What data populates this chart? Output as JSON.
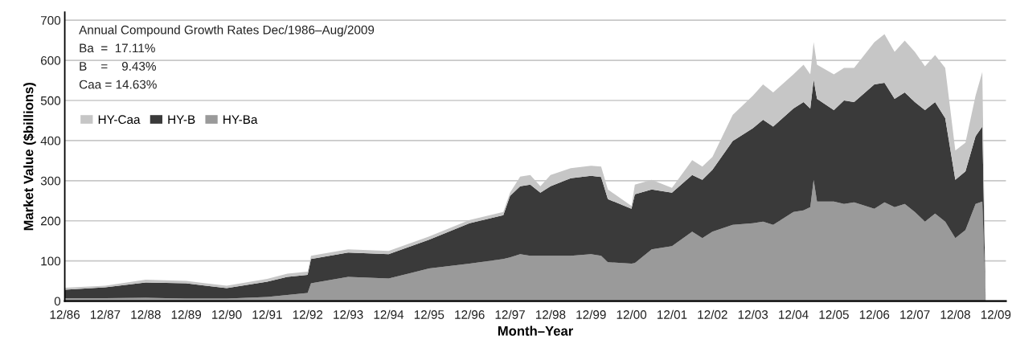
{
  "chart_data": {
    "type": "area",
    "stacked": true,
    "xlabel": "Month–Year",
    "ylabel": "Market Value ($billions)",
    "annotations": [
      "Annual Compound Growth Rates Dec/1986–Aug/2009",
      "Ba  =  17.11%",
      "B    =    9.43%",
      "Caa = 14.63%"
    ],
    "x": [
      "1986-12",
      "1987-12",
      "1988-12",
      "1989-12",
      "1990-12",
      "1991-12",
      "1992-06",
      "1992-12",
      "1993-01",
      "1993-12",
      "1994-12",
      "1995-12",
      "1996-12",
      "1997-10",
      "1997-12",
      "1998-03",
      "1998-06",
      "1998-09",
      "1998-12",
      "1999-06",
      "1999-12",
      "2000-03",
      "2000-05",
      "2000-12",
      "2001-01",
      "2001-06",
      "2001-12",
      "2002-06",
      "2002-09",
      "2002-12",
      "2003-06",
      "2003-12",
      "2004-03",
      "2004-06",
      "2004-12",
      "2005-03",
      "2005-05",
      "2005-06",
      "2005-07",
      "2005-12",
      "2006-03",
      "2006-06",
      "2006-12",
      "2007-03",
      "2007-06",
      "2007-09",
      "2007-12",
      "2008-03",
      "2008-06",
      "2008-09",
      "2008-12",
      "2009-03",
      "2009-06",
      "2009-08",
      "2009-09"
    ],
    "series": [
      {
        "name": "HY-Ba",
        "color": "#9a9a9a",
        "values": [
          7,
          7,
          8,
          6,
          6,
          10,
          15,
          20,
          44,
          60,
          56,
          81,
          93,
          105,
          109,
          117,
          113,
          113,
          113,
          113,
          117,
          113,
          97,
          93,
          95,
          129,
          137,
          173,
          157,
          173,
          190,
          194,
          198,
          190,
          222,
          226,
          234,
          302,
          248,
          248,
          242,
          246,
          230,
          246,
          234,
          242,
          222,
          198,
          218,
          198,
          157,
          177,
          242,
          248,
          0
        ]
      },
      {
        "name": "HY-B",
        "color": "#3a3a3a",
        "values": [
          21,
          27,
          38,
          38,
          26,
          38,
          45,
          45,
          61,
          61,
          61,
          72,
          101,
          109,
          153,
          169,
          177,
          157,
          173,
          193,
          195,
          196,
          157,
          137,
          171,
          149,
          133,
          141,
          145,
          154,
          209,
          237,
          254,
          245,
          258,
          270,
          246,
          250,
          256,
          228,
          258,
          250,
          310,
          298,
          270,
          278,
          274,
          278,
          278,
          258,
          145,
          146,
          169,
          187,
          0
        ]
      },
      {
        "name": "HY-Caa",
        "color": "#c6c6c6",
        "values": [
          5,
          4,
          7,
          6,
          6,
          7,
          8,
          8,
          8,
          8,
          8,
          8,
          8,
          8,
          8,
          24,
          24,
          16,
          28,
          25,
          25,
          26,
          24,
          7,
          24,
          24,
          12,
          37,
          33,
          32,
          65,
          81,
          88,
          85,
          85,
          93,
          85,
          93,
          85,
          89,
          81,
          85,
          105,
          121,
          117,
          129,
          125,
          109,
          117,
          125,
          73,
          72,
          101,
          136,
          0
        ]
      }
    ],
    "xlim": [
      "1986-12",
      "2010-03"
    ],
    "xticks": [
      {
        "value": "1986-12",
        "label": "12/86"
      },
      {
        "value": "1987-12",
        "label": "12/87"
      },
      {
        "value": "1988-12",
        "label": "12/88"
      },
      {
        "value": "1989-12",
        "label": "12/89"
      },
      {
        "value": "1990-12",
        "label": "12/90"
      },
      {
        "value": "1991-12",
        "label": "12/91"
      },
      {
        "value": "1992-12",
        "label": "12/92"
      },
      {
        "value": "1993-12",
        "label": "12/93"
      },
      {
        "value": "1994-12",
        "label": "12/94"
      },
      {
        "value": "1995-12",
        "label": "12/95"
      },
      {
        "value": "1996-12",
        "label": "12/96"
      },
      {
        "value": "1997-12",
        "label": "12/97"
      },
      {
        "value": "1998-12",
        "label": "12/98"
      },
      {
        "value": "1999-12",
        "label": "12/99"
      },
      {
        "value": "2000-12",
        "label": "12/00"
      },
      {
        "value": "2001-12",
        "label": "12/01"
      },
      {
        "value": "2002-12",
        "label": "12/02"
      },
      {
        "value": "2003-12",
        "label": "12/03"
      },
      {
        "value": "2004-12",
        "label": "12/04"
      },
      {
        "value": "2005-12",
        "label": "12/05"
      },
      {
        "value": "2006-12",
        "label": "12/06"
      },
      {
        "value": "2007-12",
        "label": "12/07"
      },
      {
        "value": "2008-12",
        "label": "12/08"
      },
      {
        "value": "2009-12",
        "label": "12/09"
      }
    ],
    "ylim": [
      0,
      720
    ],
    "yticks": [
      0,
      100,
      200,
      300,
      400,
      500,
      600,
      700
    ],
    "grid": "y",
    "legend": "top left"
  }
}
